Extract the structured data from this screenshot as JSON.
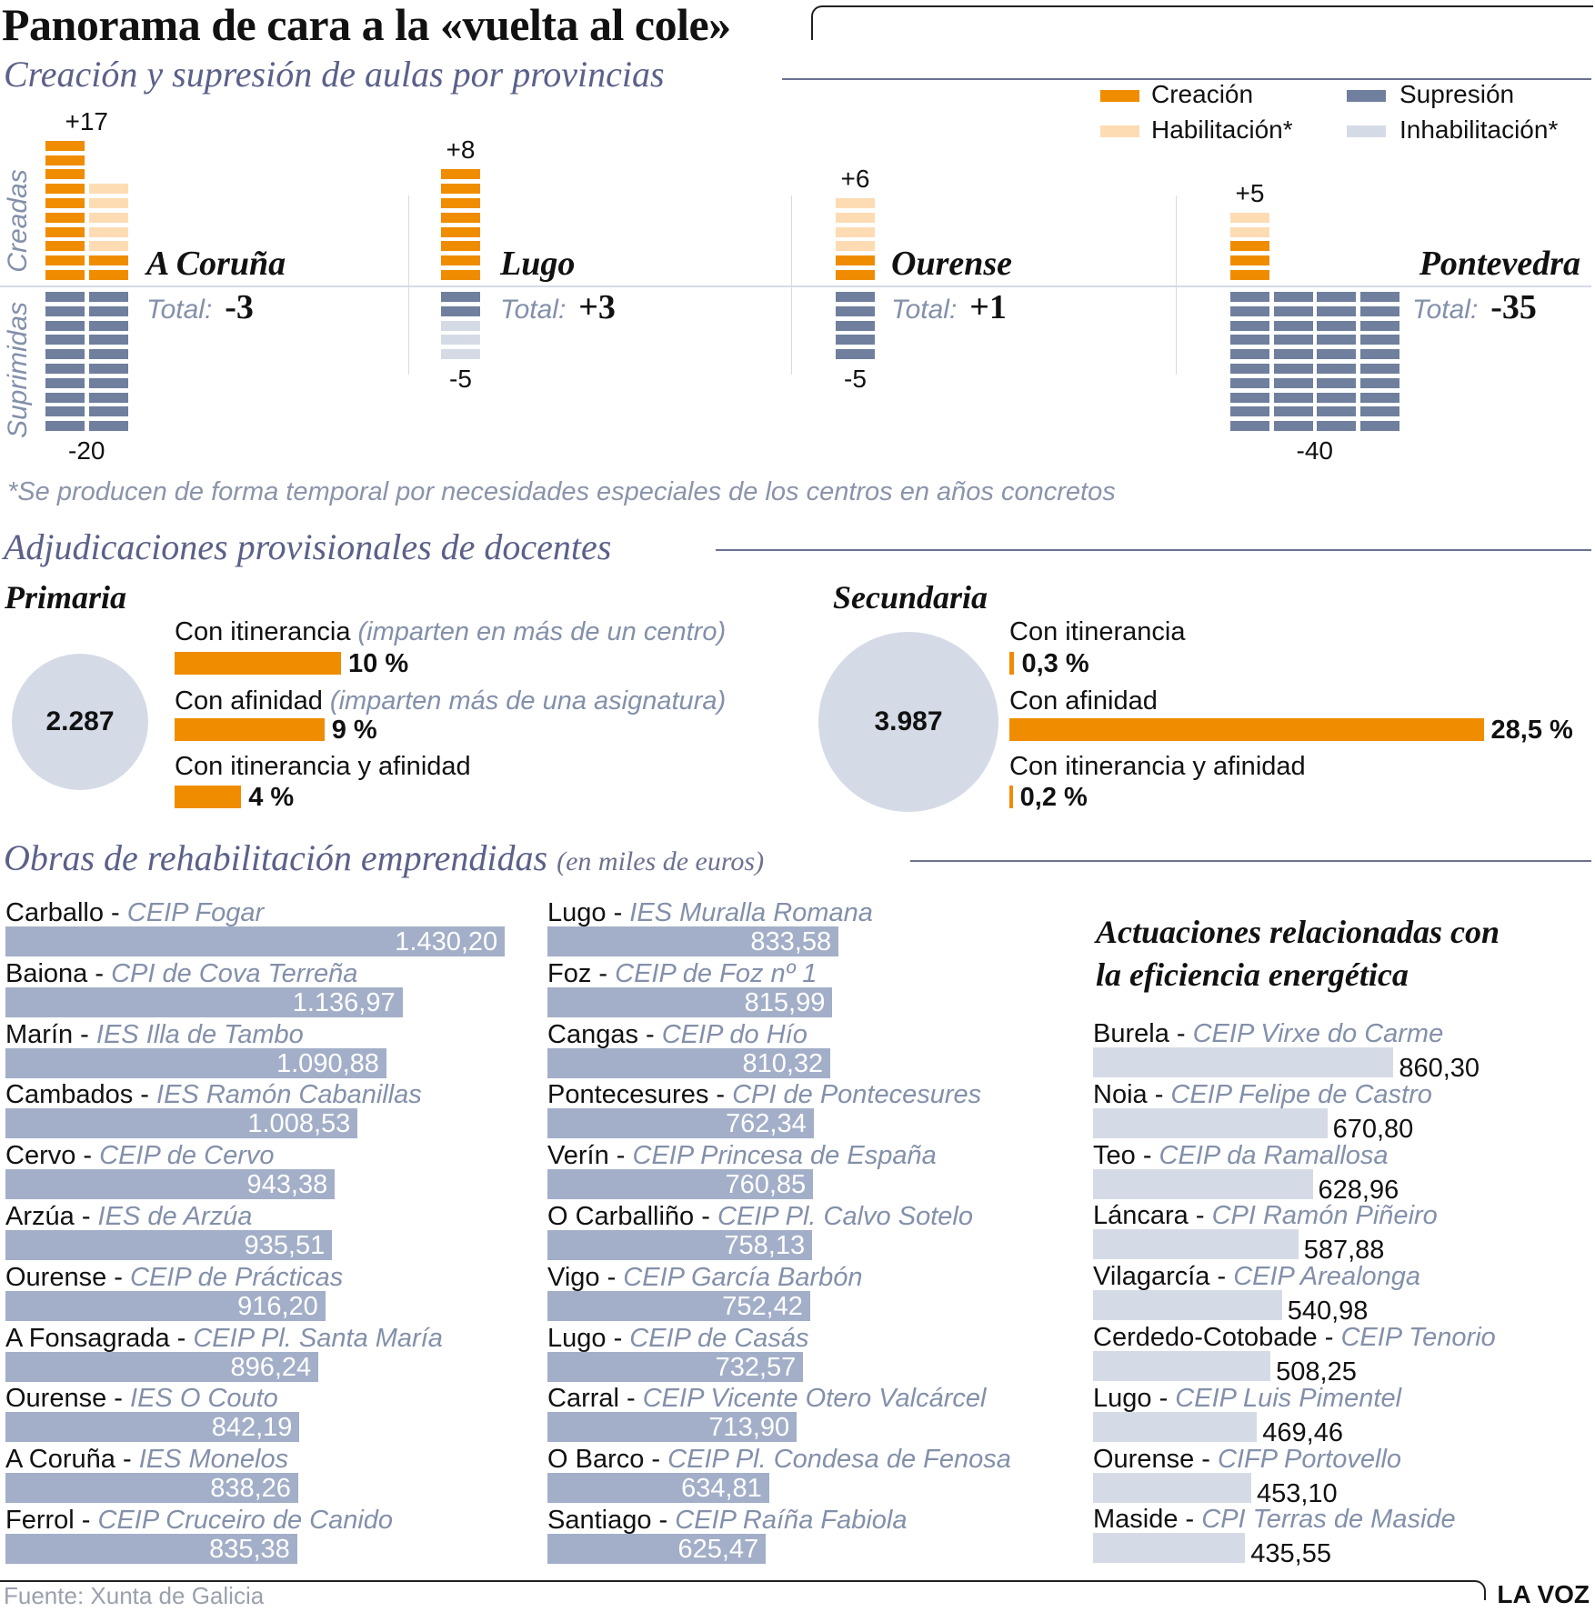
{
  "title": "Panorama de cara a la «vuelta al cole»",
  "aulas": {
    "subtitle": "Creación y supresión de aulas por provincias",
    "legend": [
      {
        "label": "Creación",
        "color": "#f08c00"
      },
      {
        "label": "Habilitación*",
        "color": "#fddcb4"
      },
      {
        "label": "Supresión",
        "color": "#6f7f9d"
      },
      {
        "label": "Inhabilitación*",
        "color": "#d5dbe6"
      }
    ],
    "axis_labels": {
      "top": "Creadas",
      "bottom": "Suprimidas"
    },
    "total_label": "Total:",
    "footnote": "*Se producen de forma temporal por necesidades especiales de los centros en años concretos"
  },
  "chart_data": [
    {
      "type": "bar",
      "title": "Creación y supresión de aulas por provincias",
      "categories": [
        "A Coruña",
        "Lugo",
        "Ourense",
        "Pontevedra"
      ],
      "series": [
        {
          "name": "Creación",
          "values": [
            12,
            8,
            2,
            3
          ]
        },
        {
          "name": "Habilitación*",
          "values": [
            5,
            0,
            4,
            2
          ]
        },
        {
          "name": "Supresión",
          "values": [
            20,
            2,
            5,
            40
          ]
        },
        {
          "name": "Inhabilitación*",
          "values": [
            0,
            3,
            0,
            0
          ]
        }
      ],
      "provinces": [
        {
          "name": "A Coruña",
          "created_label": "+17",
          "suppressed_label": "-20",
          "total": "-3",
          "creacion": 12,
          "habilitacion": 5,
          "supresion": 20,
          "inhabilitacion": 0
        },
        {
          "name": "Lugo",
          "created_label": "+8",
          "suppressed_label": "-5",
          "total": "+3",
          "creacion": 8,
          "habilitacion": 0,
          "supresion": 2,
          "inhabilitacion": 3
        },
        {
          "name": "Ourense",
          "created_label": "+6",
          "suppressed_label": "-5",
          "total": "+1",
          "creacion": 2,
          "habilitacion": 4,
          "supresion": 5,
          "inhabilitacion": 0
        },
        {
          "name": "Pontevedra",
          "created_label": "+5",
          "suppressed_label": "-40",
          "total": "-35",
          "creacion": 3,
          "habilitacion": 2,
          "supresion": 40,
          "inhabilitacion": 0
        }
      ]
    },
    {
      "type": "bar",
      "title": "Adjudicaciones provisionales de docentes",
      "groups": [
        {
          "name": "Primaria",
          "total": "2.287",
          "items": [
            {
              "label": "Con itinerancia",
              "note": "(imparten en más de un centro)",
              "value": 10,
              "value_label": "10 %"
            },
            {
              "label": "Con afinidad",
              "note": "(imparten más de una asignatura)",
              "value": 9,
              "value_label": "9 %"
            },
            {
              "label": "Con itinerancia y afinidad",
              "note": "",
              "value": 4,
              "value_label": "4 %"
            }
          ]
        },
        {
          "name": "Secundaria",
          "total": "3.987",
          "items": [
            {
              "label": "Con itinerancia",
              "note": "",
              "value": 0.3,
              "value_label": "0,3 %"
            },
            {
              "label": "Con afinidad",
              "note": "",
              "value": 28.5,
              "value_label": "28,5 %"
            },
            {
              "label": "Con itinerancia y afinidad",
              "note": "",
              "value": 0.2,
              "value_label": "0,2 %"
            }
          ]
        }
      ]
    },
    {
      "type": "bar",
      "title": "Obras de rehabilitación emprendidas",
      "unit": "(en miles de euros)",
      "columns": [
        [
          {
            "town": "Carballo -",
            "school": "CEIP Fogar",
            "value": 1430.2,
            "label": "1.430,20"
          },
          {
            "town": "Baiona -",
            "school": "CPI de Cova Terreña",
            "value": 1136.97,
            "label": "1.136,97"
          },
          {
            "town": "Marín -",
            "school": "IES Illa de Tambo",
            "value": 1090.88,
            "label": "1.090,88"
          },
          {
            "town": "Cambados -",
            "school": "IES Ramón Cabanillas",
            "value": 1008.53,
            "label": "1.008,53"
          },
          {
            "town": "Cervo -",
            "school": "CEIP de Cervo",
            "value": 943.38,
            "label": "943,38"
          },
          {
            "town": "Arzúa -",
            "school": "IES de Arzúa",
            "value": 935.51,
            "label": "935,51"
          },
          {
            "town": "Ourense -",
            "school": "CEIP de Prácticas",
            "value": 916.2,
            "label": "916,20"
          },
          {
            "town": "A Fonsagrada -",
            "school": "CEIP Pl. Santa María",
            "value": 896.24,
            "label": "896,24"
          },
          {
            "town": "Ourense -",
            "school": "IES O Couto",
            "value": 842.19,
            "label": "842,19"
          },
          {
            "town": "A Coruña -",
            "school": "IES Monelos",
            "value": 838.26,
            "label": "838,26"
          },
          {
            "town": "Ferrol -",
            "school": "CEIP Cruceiro de Canido",
            "value": 835.38,
            "label": "835,38"
          }
        ],
        [
          {
            "town": "Lugo -",
            "school": "IES Muralla Romana",
            "value": 833.58,
            "label": "833,58"
          },
          {
            "town": "Foz -",
            "school": "CEIP de Foz nº 1",
            "value": 815.99,
            "label": "815,99"
          },
          {
            "town": "Cangas -",
            "school": "CEIP do Hío",
            "value": 810.32,
            "label": "810,32"
          },
          {
            "town": "Pontecesures -",
            "school": "CPI de Pontecesures",
            "value": 762.34,
            "label": "762,34"
          },
          {
            "town": "Verín -",
            "school": "CEIP Princesa de España",
            "value": 760.85,
            "label": "760,85"
          },
          {
            "town": "O Carballiño -",
            "school": "CEIP Pl. Calvo Sotelo",
            "value": 758.13,
            "label": "758,13"
          },
          {
            "town": "Vigo -",
            "school": "CEIP García Barbón",
            "value": 752.42,
            "label": "752,42"
          },
          {
            "town": "Lugo -",
            "school": "CEIP de Casás",
            "value": 732.57,
            "label": "732,57"
          },
          {
            "town": "Carral -",
            "school": "CEIP Vicente Otero Valcárcel",
            "value": 713.9,
            "label": "713,90"
          },
          {
            "town": "O Barco -",
            "school": "CEIP Pl. Condesa de Fenosa",
            "value": 634.81,
            "label": "634,81"
          },
          {
            "town": "Santiago -",
            "school": "CEIP Raíña Fabiola",
            "value": 625.47,
            "label": "625,47"
          }
        ]
      ]
    },
    {
      "type": "bar",
      "title": "Actuaciones relacionadas con la eficiencia energética",
      "items": [
        {
          "town": "Burela -",
          "school": "CEIP Virxe do Carme",
          "value": 860.3,
          "label": "860,30"
        },
        {
          "town": "Noia -",
          "school": "CEIP Felipe de Castro",
          "value": 670.8,
          "label": "670,80"
        },
        {
          "town": "Teo -",
          "school": "CEIP da Ramallosa",
          "value": 628.96,
          "label": "628,96"
        },
        {
          "town": "Láncara -",
          "school": "CPI Ramón Piñeiro",
          "value": 587.88,
          "label": "587,88"
        },
        {
          "town": "Vilagarcía -",
          "school": "CEIP Arealonga",
          "value": 540.98,
          "label": "540,98"
        },
        {
          "town": "Cerdedo-Cotobade -",
          "school": "CEIP Tenorio",
          "value": 508.25,
          "label": "508,25"
        },
        {
          "town": "Lugo -",
          "school": "CEIP Luis Pimentel",
          "value": 469.46,
          "label": "469,46"
        },
        {
          "town": "Ourense -",
          "school": "CIFP Portovello",
          "value": 453.1,
          "label": "453,10"
        },
        {
          "town": "Maside -",
          "school": "CPI Terras de Maside",
          "value": 435.55,
          "label": "435,55"
        }
      ]
    }
  ],
  "docentes": {
    "subtitle": "Adjudicaciones provisionales de docentes"
  },
  "obras": {
    "subtitle": "Obras de rehabilitación emprendidas",
    "unit": "(en miles de euros)"
  },
  "eficiencia": {
    "title_line1": "Actuaciones relacionadas con",
    "title_line2": "la eficiencia energética"
  },
  "footer": {
    "source": "Fuente: Xunta de Galicia",
    "brand": "LA VOZ"
  },
  "colors": {
    "orange": "#f08c00",
    "orange_light": "#fddcb4",
    "slate": "#6f7f9d",
    "slate_light": "#d5dbe6",
    "list_bar": "#a3afc8",
    "section_title": "#5b6189"
  }
}
